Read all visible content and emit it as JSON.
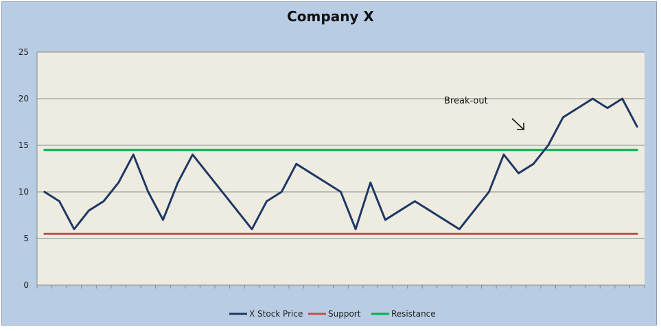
{
  "chart_data": {
    "type": "line",
    "title": "Company X",
    "xlabel": "",
    "ylabel": "",
    "ylim": [
      0,
      25
    ],
    "yticks": [
      0,
      5,
      10,
      15,
      20,
      25
    ],
    "grid": true,
    "legend": "bottom",
    "x": [
      1,
      2,
      3,
      4,
      5,
      6,
      7,
      8,
      9,
      10,
      11,
      12,
      13,
      14,
      15,
      16,
      17,
      18,
      19,
      20,
      21,
      22,
      23,
      24,
      25,
      26,
      27,
      28,
      29,
      30,
      31,
      32,
      33,
      34,
      35,
      36,
      37,
      38,
      39,
      40,
      41
    ],
    "series": [
      {
        "name": "X Stock Price",
        "color": "#1f3864",
        "values": [
          10,
          9,
          6,
          8,
          9,
          11,
          14,
          10,
          7,
          11,
          14,
          12,
          10,
          8,
          6,
          9,
          10,
          13,
          12,
          11,
          10,
          6,
          11,
          7,
          8,
          9,
          8,
          7,
          6,
          8,
          10,
          14,
          12,
          13,
          15,
          18,
          19,
          20,
          19,
          20,
          17
        ]
      },
      {
        "name": "Support",
        "color": "#c0504d",
        "values": [
          5.5,
          5.5,
          5.5,
          5.5,
          5.5,
          5.5,
          5.5,
          5.5,
          5.5,
          5.5,
          5.5,
          5.5,
          5.5,
          5.5,
          5.5,
          5.5,
          5.5,
          5.5,
          5.5,
          5.5,
          5.5,
          5.5,
          5.5,
          5.5,
          5.5,
          5.5,
          5.5,
          5.5,
          5.5,
          5.5,
          5.5,
          5.5,
          5.5,
          5.5,
          5.5,
          5.5,
          5.5,
          5.5,
          5.5,
          5.5,
          5.5
        ]
      },
      {
        "name": "Resistance",
        "color": "#00b050",
        "values": [
          14.5,
          14.5,
          14.5,
          14.5,
          14.5,
          14.5,
          14.5,
          14.5,
          14.5,
          14.5,
          14.5,
          14.5,
          14.5,
          14.5,
          14.5,
          14.5,
          14.5,
          14.5,
          14.5,
          14.5,
          14.5,
          14.5,
          14.5,
          14.5,
          14.5,
          14.5,
          14.5,
          14.5,
          14.5,
          14.5,
          14.5,
          14.5,
          14.5,
          14.5,
          14.5,
          14.5,
          14.5,
          14.5,
          14.5,
          14.5,
          14.5
        ]
      }
    ],
    "annotations": [
      {
        "text": "Break-out"
      }
    ],
    "plot_background": "#eeece1",
    "chart_background": "#b8cce4"
  }
}
